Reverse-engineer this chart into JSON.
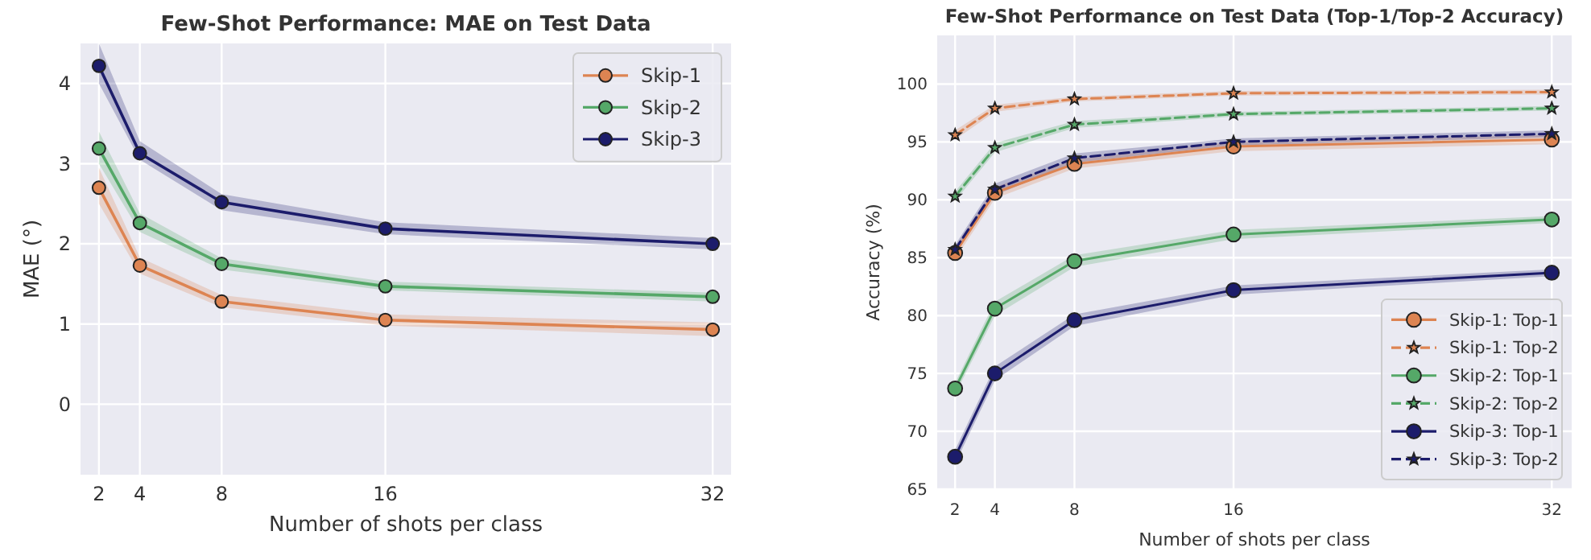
{
  "chart_data": [
    {
      "type": "line",
      "title": "Few-Shot Performance: MAE on Test Data",
      "xlabel": "Number of shots per class",
      "ylabel": "MAE (°)",
      "x": [
        2,
        4,
        8,
        16,
        32
      ],
      "xlim": [
        1.1,
        32.9
      ],
      "xticks": [
        2,
        4,
        8,
        16,
        32
      ],
      "ylim": [
        -0.88,
        4.5
      ],
      "yticks": [
        0,
        1,
        2,
        3,
        4
      ],
      "grid": true,
      "legend": "top right",
      "series": [
        {
          "name": "Skip-1",
          "color": "#dd8452",
          "marker": "circle",
          "line_style": "solid",
          "values": [
            2.7,
            1.73,
            1.28,
            1.05,
            0.93
          ],
          "lower": [
            2.5,
            1.63,
            1.21,
            0.98,
            0.85
          ],
          "upper": [
            2.95,
            1.83,
            1.36,
            1.12,
            1.02
          ]
        },
        {
          "name": "Skip-2",
          "color": "#55a868",
          "marker": "circle",
          "line_style": "solid",
          "values": [
            3.19,
            2.26,
            1.75,
            1.47,
            1.34
          ],
          "lower": [
            3.0,
            2.15,
            1.68,
            1.42,
            1.28
          ],
          "upper": [
            3.4,
            2.38,
            1.82,
            1.53,
            1.39
          ]
        },
        {
          "name": "Skip-3",
          "color": "#1c1c6b",
          "marker": "circle",
          "line_style": "solid",
          "values": [
            4.22,
            3.13,
            2.52,
            2.19,
            2.0
          ],
          "lower": [
            4.0,
            3.05,
            2.42,
            2.12,
            1.93
          ],
          "upper": [
            4.5,
            3.28,
            2.62,
            2.27,
            2.07
          ]
        }
      ]
    },
    {
      "type": "line",
      "title": "Few-Shot Performance on Test Data (Top-1/Top-2 Accuracy)",
      "xlabel": "Number of shots per class",
      "ylabel": "Accuracy (%)",
      "x": [
        2,
        4,
        8,
        16,
        32
      ],
      "xlim": [
        1.1,
        33
      ],
      "xticks": [
        2,
        4,
        8,
        16,
        32
      ],
      "ylim": [
        65,
        104.2
      ],
      "yticks": [
        65,
        70,
        75,
        80,
        85,
        90,
        95,
        100
      ],
      "grid": true,
      "legend": "bottom right",
      "series": [
        {
          "name": "Skip-1: Top-1",
          "color": "#dd8452",
          "marker": "circle",
          "line_style": "solid",
          "values": [
            85.4,
            90.6,
            93.1,
            94.6,
            95.2
          ],
          "lower": [
            84.9,
            90.1,
            92.7,
            94.2,
            94.8
          ],
          "upper": [
            85.9,
            91.1,
            93.5,
            95.0,
            95.6
          ]
        },
        {
          "name": "Skip-1: Top-2",
          "color": "#dd8452",
          "marker": "star",
          "line_style": "dashed",
          "values": [
            95.6,
            97.9,
            98.7,
            99.2,
            99.3
          ],
          "lower": [
            95.2,
            97.6,
            98.5,
            99.0,
            99.1
          ],
          "upper": [
            96.0,
            98.2,
            98.9,
            99.4,
            99.5
          ]
        },
        {
          "name": "Skip-2: Top-1",
          "color": "#55a868",
          "marker": "circle",
          "line_style": "solid",
          "values": [
            73.7,
            80.6,
            84.7,
            87.0,
            88.3
          ],
          "lower": [
            73.2,
            80.0,
            84.2,
            86.6,
            88.0
          ],
          "upper": [
            74.2,
            81.2,
            85.2,
            87.4,
            88.6
          ]
        },
        {
          "name": "Skip-2: Top-2",
          "color": "#55a868",
          "marker": "star",
          "line_style": "dashed",
          "values": [
            90.3,
            94.5,
            96.5,
            97.4,
            97.9
          ],
          "lower": [
            89.9,
            94.1,
            96.2,
            97.2,
            97.7
          ],
          "upper": [
            90.7,
            94.9,
            96.8,
            97.6,
            98.1
          ]
        },
        {
          "name": "Skip-3: Top-1",
          "color": "#1c1c6b",
          "marker": "circle",
          "line_style": "solid",
          "values": [
            67.8,
            75.0,
            79.6,
            82.2,
            83.7
          ],
          "lower": [
            67.2,
            74.4,
            79.1,
            81.8,
            83.4
          ],
          "upper": [
            68.4,
            75.6,
            80.1,
            82.6,
            84.0
          ]
        },
        {
          "name": "Skip-3: Top-2",
          "color": "#1c1c6b",
          "marker": "star",
          "line_style": "dashed",
          "values": [
            85.7,
            90.9,
            93.6,
            95.0,
            95.7
          ],
          "lower": [
            85.3,
            90.4,
            93.2,
            94.7,
            95.4
          ],
          "upper": [
            86.1,
            91.4,
            94.0,
            95.3,
            96.0
          ]
        }
      ]
    }
  ]
}
